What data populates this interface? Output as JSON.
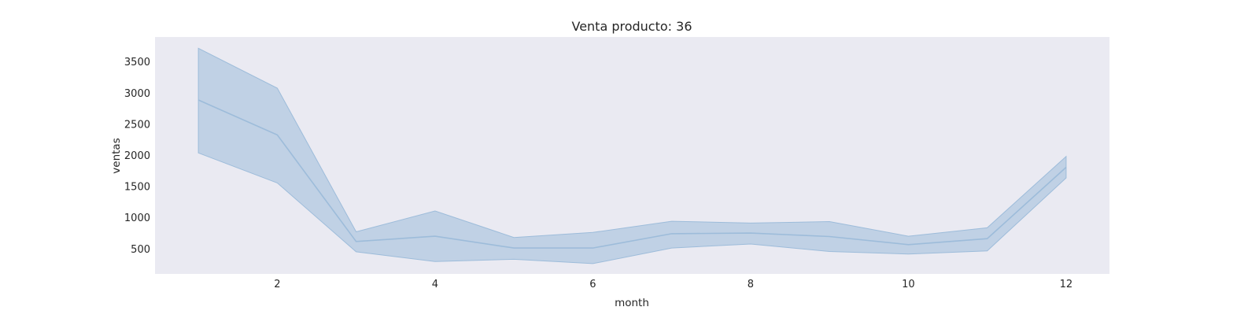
{
  "chart_data": {
    "type": "line",
    "title": "Venta producto: 36",
    "xlabel": "month",
    "ylabel": "ventas",
    "xlim": [
      0.45,
      12.55
    ],
    "ylim": [
      100,
      3900
    ],
    "xticks": [
      2,
      4,
      6,
      8,
      10,
      12
    ],
    "yticks": [
      500,
      1000,
      1500,
      2000,
      2500,
      3000,
      3500
    ],
    "grid": false,
    "legend": "none",
    "background_color": "#eaeaf2",
    "series": [
      {
        "color": "#9dbcda",
        "x": [
          1,
          2,
          3,
          4,
          5,
          6,
          7,
          8,
          9,
          10,
          11,
          12
        ],
        "y": [
          2890,
          2330,
          620,
          705,
          515,
          515,
          745,
          755,
          700,
          570,
          665,
          1810
        ],
        "ci_lower": [
          2040,
          1560,
          455,
          300,
          335,
          265,
          515,
          580,
          460,
          420,
          470,
          1640
        ],
        "ci_upper": [
          3720,
          3080,
          775,
          1110,
          685,
          765,
          945,
          915,
          940,
          705,
          840,
          1985
        ]
      }
    ]
  }
}
